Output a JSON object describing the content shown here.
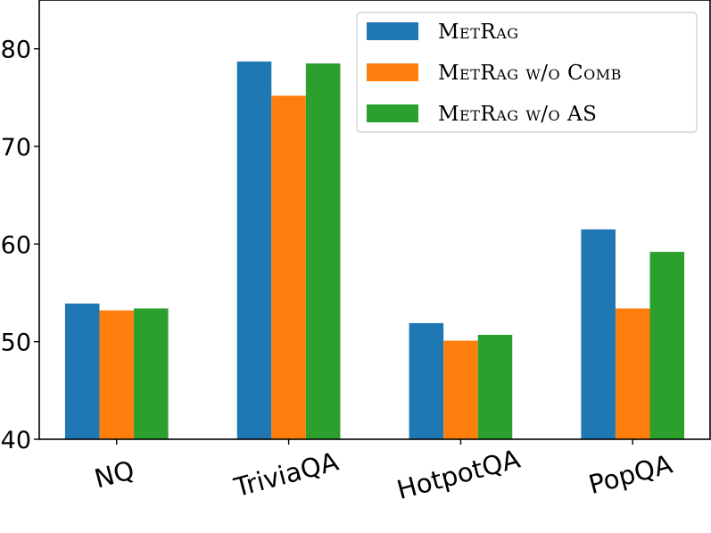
{
  "chart_data": {
    "type": "bar",
    "categories": [
      "NQ",
      "TriviaQA",
      "HotpotQA",
      "PopQA"
    ],
    "series": [
      {
        "name": "MetRag",
        "color": "#1f77b4",
        "values": [
          53.9,
          78.7,
          51.9,
          61.5
        ]
      },
      {
        "name": "MetRag w/o Comb",
        "color": "#ff7f0e",
        "values": [
          53.2,
          75.2,
          50.1,
          53.4
        ]
      },
      {
        "name": "MetRag w/o AS",
        "color": "#2ca02c",
        "values": [
          53.4,
          78.5,
          50.7,
          59.2
        ]
      }
    ],
    "ylim": [
      40,
      85
    ],
    "yticks": [
      40,
      50,
      60,
      70,
      80
    ],
    "xlabel": "",
    "ylabel": "",
    "title": "",
    "grid": false,
    "legend_position": "top-right",
    "x_tick_rotation_deg": -15
  }
}
